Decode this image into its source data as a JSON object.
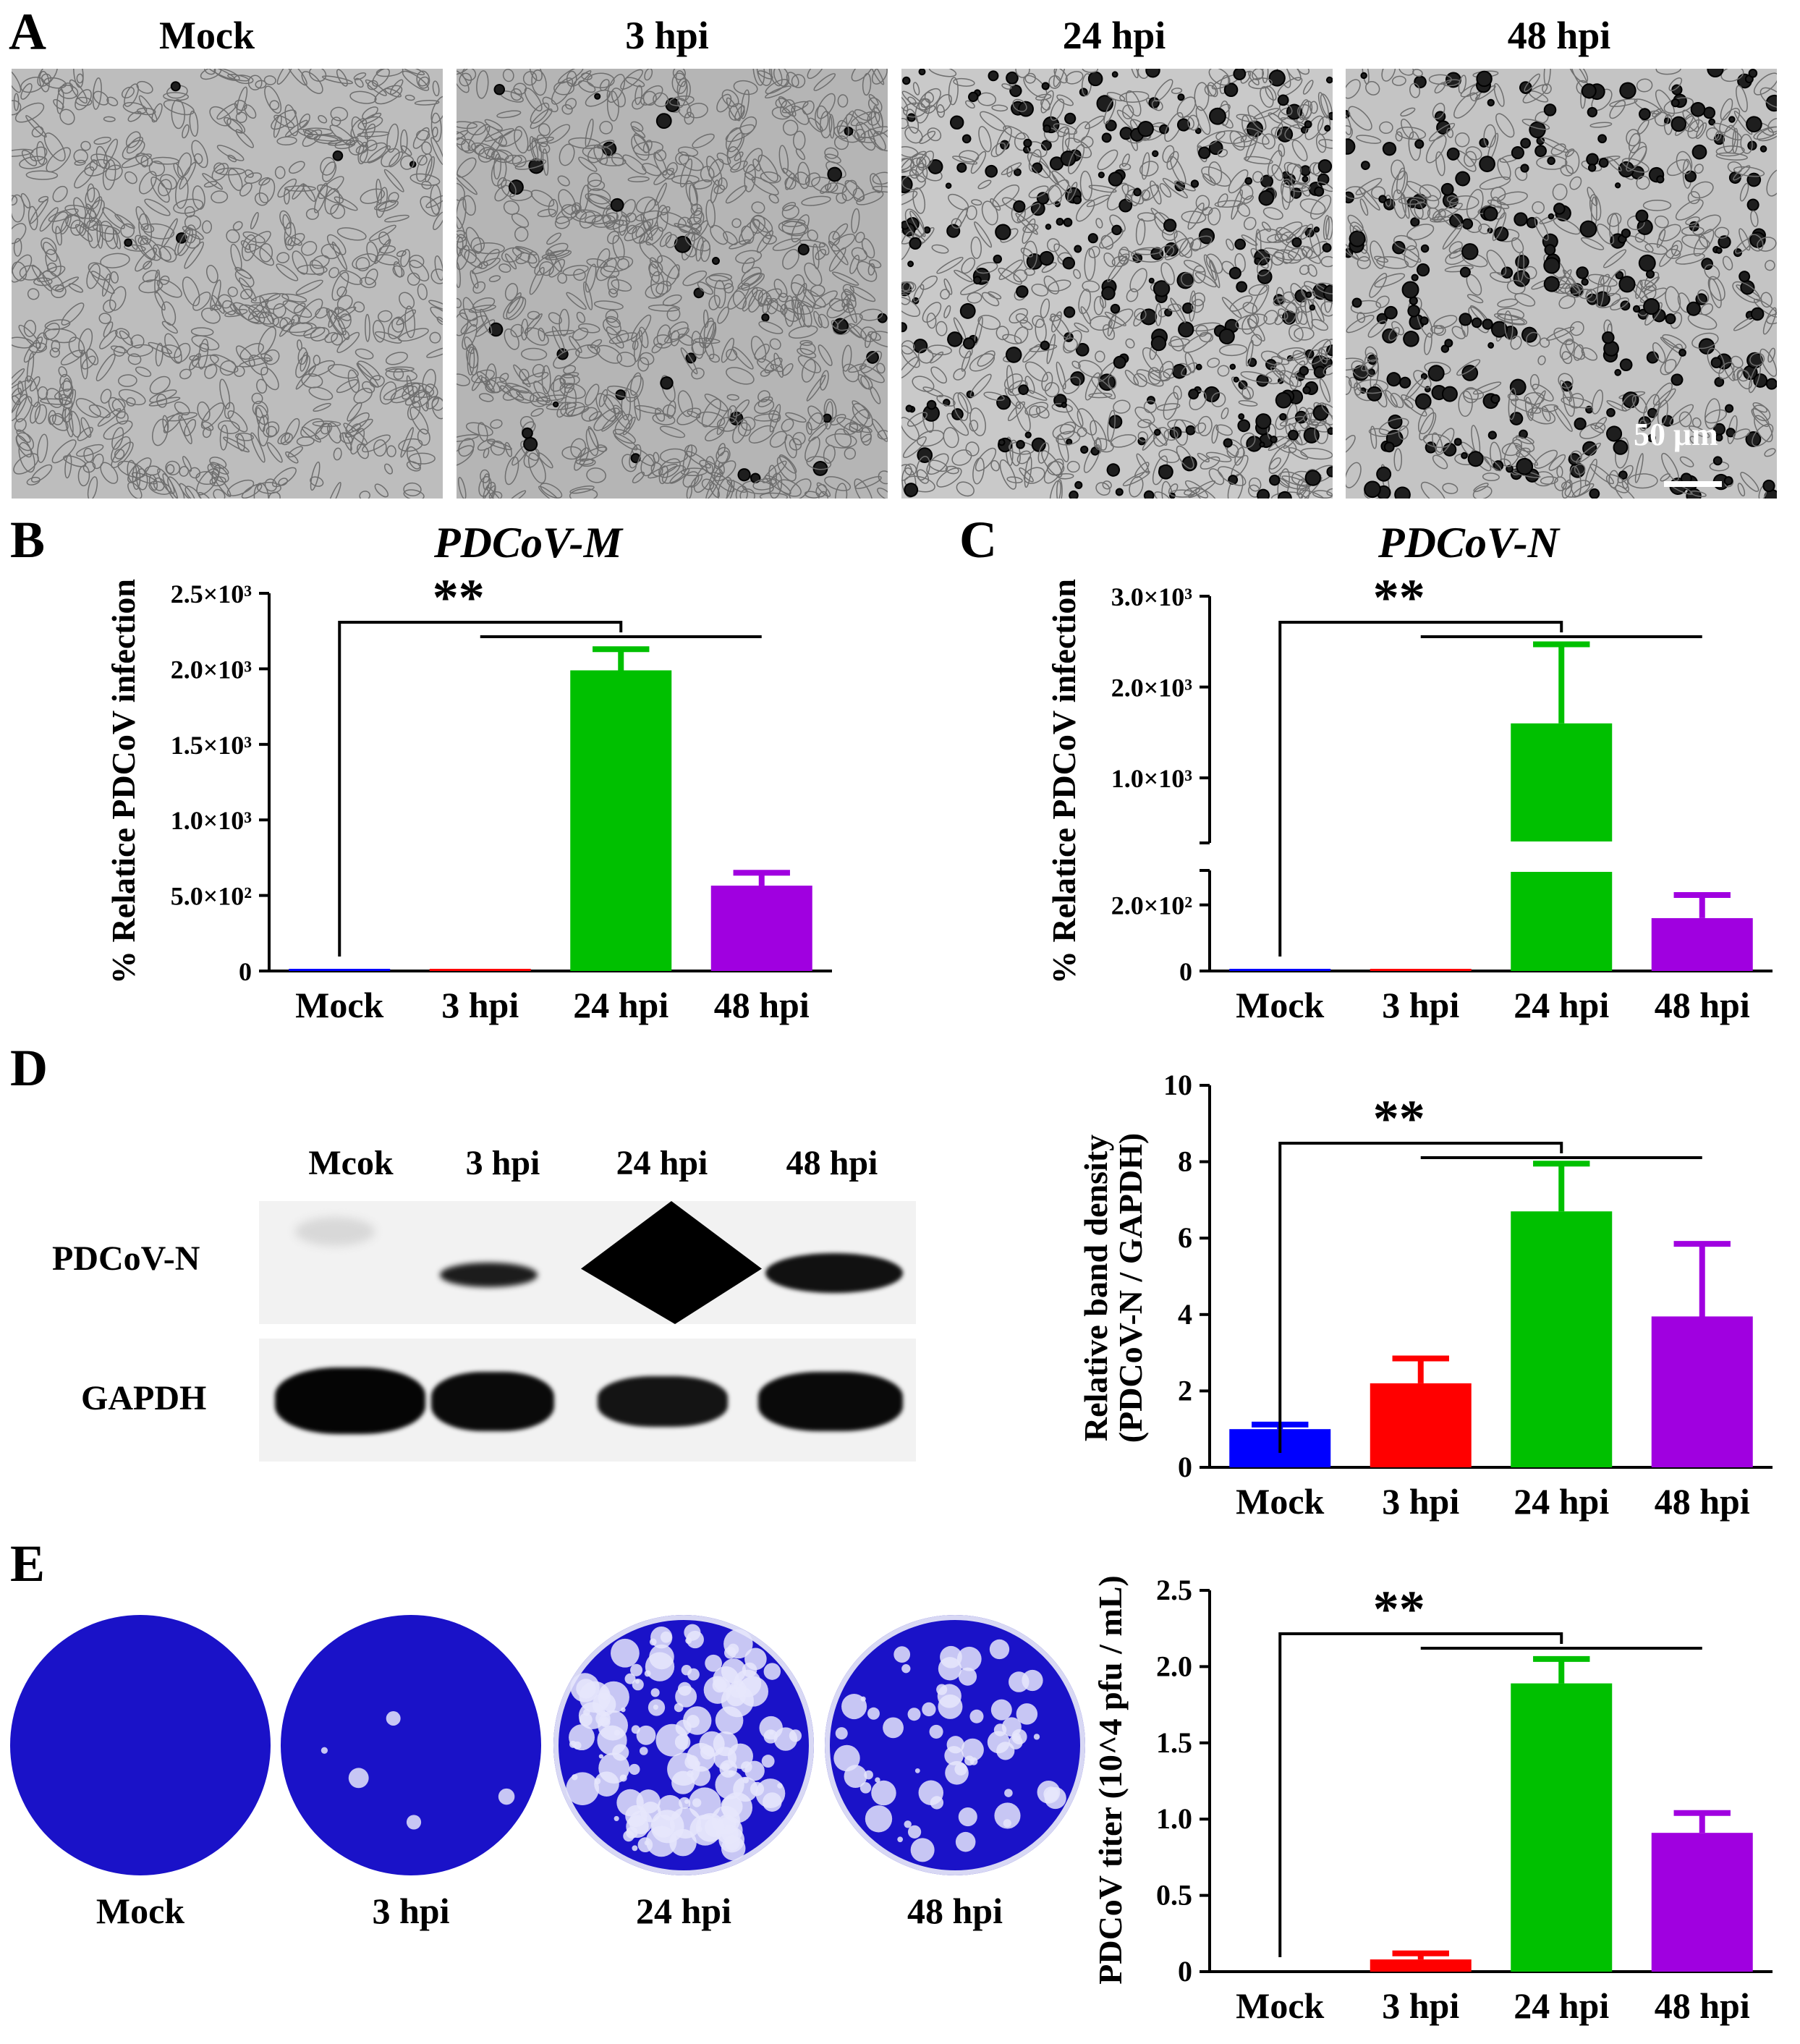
{
  "panels": {
    "A": {
      "letter": "A",
      "columns": [
        "Mock",
        "3 hpi",
        "24 hpi",
        "48 hpi"
      ],
      "scale_bar": "50 μm"
    },
    "D": {
      "letter": "D",
      "lanes": [
        "Mcok",
        "3 hpi",
        "24 hpi",
        "48 hpi"
      ],
      "rows": [
        "PDCoV-N",
        "GAPDH"
      ]
    },
    "E": {
      "letter": "E",
      "plates": [
        "Mock",
        "3 hpi",
        "24 hpi",
        "48 hpi"
      ]
    }
  },
  "colors": {
    "mock": "#0000ff",
    "h3": "#ff0000",
    "h24": "#00c000",
    "h48": "#a000e0",
    "plate": "#1a12c8"
  },
  "chart_data": [
    {
      "id": "B",
      "letter": "B",
      "type": "bar",
      "title": "PDCoV-M",
      "ylabel": "% Relatice PDCoV infection",
      "categories": [
        "Mock",
        "3 hpi",
        "24 hpi",
        "48 hpi"
      ],
      "values": [
        1,
        1,
        1990,
        565
      ],
      "errors": [
        0,
        0,
        140,
        85
      ],
      "ylim": [
        0,
        2500
      ],
      "yticks": [
        0,
        500,
        1000,
        1500,
        2000,
        2500
      ],
      "ytick_labels": [
        "0",
        "5.0×10²",
        "1.0×10³",
        "1.5×10³",
        "2.0×10³",
        "2.5×10³"
      ],
      "significance": "**"
    },
    {
      "id": "C",
      "letter": "C",
      "type": "bar",
      "title": "PDCoV-N",
      "ylabel": "% Relatice PDCoV infection",
      "categories": [
        "Mock",
        "3 hpi",
        "24 hpi",
        "48 hpi"
      ],
      "values": [
        1,
        3,
        1600,
        160
      ],
      "errors": [
        0,
        0,
        870,
        70
      ],
      "broken_axis": {
        "lower": [
          0,
          300
        ],
        "upper": [
          300,
          3000
        ]
      },
      "yticks": [
        0,
        200,
        1000,
        2000,
        3000
      ],
      "ytick_labels": [
        "0",
        "2.0×10²",
        "1.0×10³",
        "2.0×10³",
        "3.0×10³"
      ],
      "significance": "**"
    },
    {
      "id": "D",
      "type": "bar",
      "title": "",
      "ylabel": [
        "Relative band density",
        "(PDCoV-N / GAPDH)"
      ],
      "categories": [
        "Mock",
        "3 hpi",
        "24 hpi",
        "48 hpi"
      ],
      "values": [
        1.0,
        2.2,
        6.7,
        3.95
      ],
      "errors": [
        0.12,
        0.65,
        1.25,
        1.9
      ],
      "ylim": [
        0,
        10
      ],
      "yticks": [
        0,
        2,
        4,
        6,
        8,
        10
      ],
      "ytick_labels": [
        "0",
        "2",
        "4",
        "6",
        "8",
        "10"
      ],
      "significance": "**"
    },
    {
      "id": "E",
      "type": "bar",
      "title": "",
      "ylabel": "PDCoV titer (10^4 pfu / mL)",
      "categories": [
        "Mock",
        "3 hpi",
        "24 hpi",
        "48 hpi"
      ],
      "values": [
        0,
        0.08,
        1.89,
        0.91
      ],
      "errors": [
        0,
        0.04,
        0.16,
        0.13
      ],
      "ylim": [
        0,
        2.5
      ],
      "yticks": [
        0,
        0.5,
        1.0,
        1.5,
        2.0,
        2.5
      ],
      "ytick_labels": [
        "0",
        "0.5",
        "1.0",
        "1.5",
        "2.0",
        "2.5"
      ],
      "significance": "**"
    }
  ]
}
